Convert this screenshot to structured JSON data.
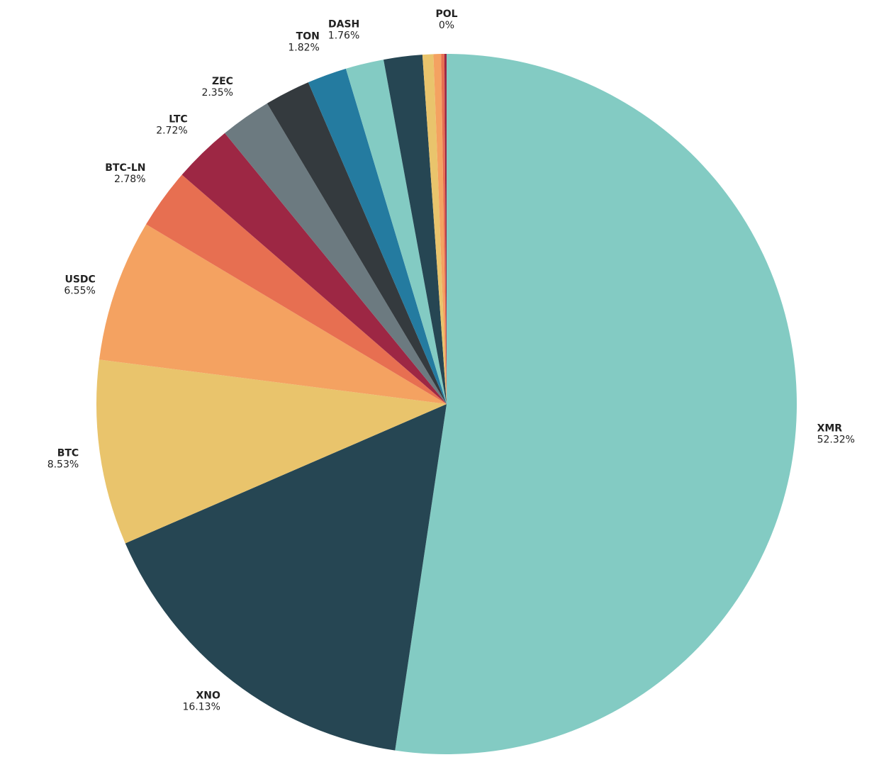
{
  "chart_data": {
    "type": "pie",
    "categories": [
      "XMR",
      "XNO",
      "BTC",
      "USDC",
      "BTC-LN",
      "LTC",
      "ZEC",
      null,
      "TON",
      "DASH",
      null,
      null,
      null,
      null,
      null,
      "POL"
    ],
    "values": [
      52.32,
      16.13,
      8.53,
      6.55,
      2.78,
      2.72,
      2.35,
      2.1,
      1.82,
      1.76,
      1.78,
      0.5,
      0.35,
      0.15,
      0.1,
      0
    ],
    "value_labels": [
      "52.32%",
      "16.13%",
      "8.53%",
      "6.55%",
      "2.78%",
      "2.72%",
      "2.35%",
      null,
      "1.82%",
      "1.76%",
      null,
      null,
      null,
      null,
      null,
      "0%"
    ],
    "colors": [
      "#83cbc3",
      "#264653",
      "#e9c46c",
      "#f4a261",
      "#e76f51",
      "#9d2744",
      "#6c7a80",
      "#343a3e",
      "#247ba0",
      "#83cbc3",
      "#264653",
      "#e9c46c",
      "#f4a261",
      "#e76f51",
      "#9d2744",
      "#6c2a45"
    ]
  }
}
